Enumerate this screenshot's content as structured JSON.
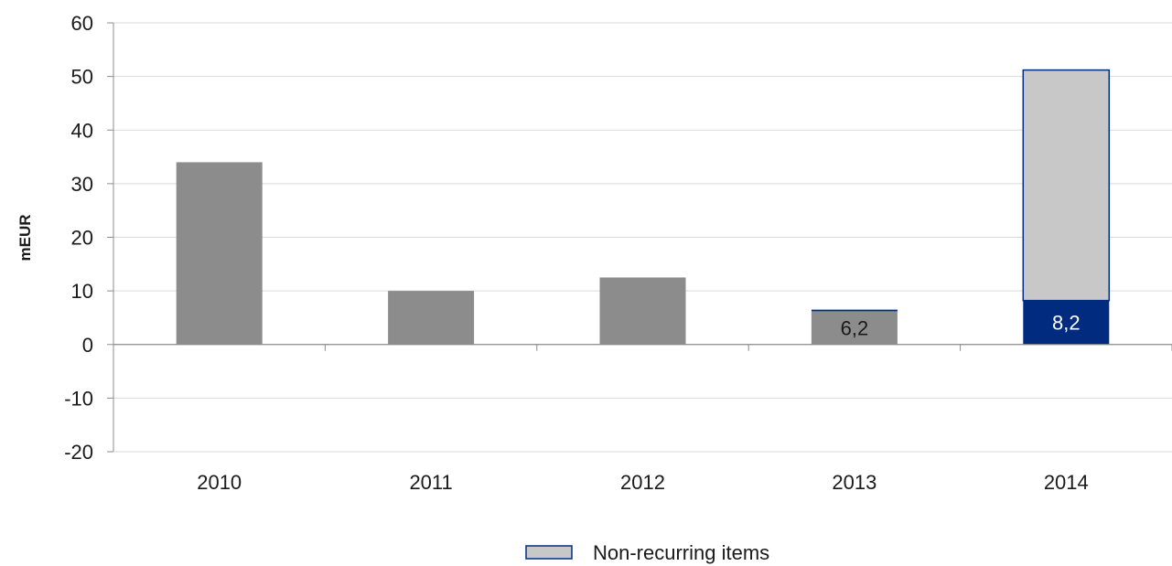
{
  "chart_data": {
    "type": "bar",
    "stacked": true,
    "categories": [
      "2010",
      "2011",
      "2012",
      "2013",
      "2014"
    ],
    "series": [
      {
        "key": "base",
        "values": [
          34,
          10,
          12.5,
          6.2,
          0
        ],
        "color": "#8c8c8c"
      },
      {
        "key": "dark",
        "values": [
          0,
          0,
          0,
          0.3,
          8.2
        ],
        "color": "#002b7f"
      },
      {
        "name": "Non-recurring items",
        "values": [
          0,
          0,
          0,
          0,
          43
        ],
        "color": "#c8c8c8",
        "border": "#002b7f"
      }
    ],
    "data_labels": [
      {
        "category": "2013",
        "text": "6,2",
        "color": "#1a1a1a"
      },
      {
        "category": "2014",
        "text": "8,2",
        "color": "#ffffff"
      }
    ],
    "ylabel": "mEUR",
    "xlabel": "",
    "ylim": [
      -20,
      60
    ],
    "yticks": [
      "60",
      "50",
      "40",
      "30",
      "20",
      "10",
      "0",
      "-10",
      "-20"
    ],
    "grid": true,
    "legend": {
      "position": "bottom",
      "entries": [
        "Non-recurring items"
      ]
    }
  }
}
